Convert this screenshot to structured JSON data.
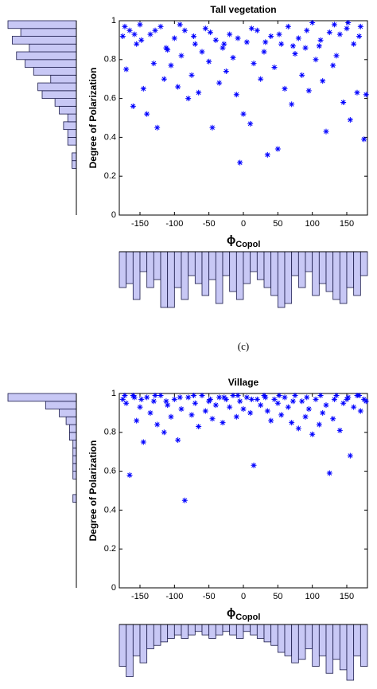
{
  "caption": "(c)",
  "chart_data": [
    {
      "type": "scatter",
      "title": "Tall vegetation",
      "y_label": "Degree of Polarization",
      "x_label": "ϕ",
      "x_label_sub": "Copol",
      "xlim": [
        -180,
        180
      ],
      "xticks": [
        -150,
        -100,
        -50,
        0,
        50,
        100,
        150
      ],
      "ylim": [
        0,
        1
      ],
      "yticks": [
        0,
        0.2,
        0.4,
        0.6,
        0.8,
        1
      ],
      "series": [
        {
          "color": "#0000ff",
          "x": [
            -175,
            -170,
            -165,
            -160,
            -155,
            -150,
            -145,
            -140,
            -135,
            -130,
            -125,
            -120,
            -115,
            -110,
            -105,
            -100,
            -95,
            -90,
            -85,
            -80,
            -75,
            -70,
            -65,
            -60,
            -55,
            -50,
            -45,
            -40,
            -35,
            -30,
            -25,
            -20,
            -15,
            -10,
            -5,
            0,
            5,
            10,
            15,
            20,
            25,
            30,
            35,
            40,
            45,
            50,
            55,
            60,
            65,
            70,
            75,
            80,
            85,
            90,
            95,
            100,
            105,
            110,
            115,
            120,
            125,
            130,
            135,
            140,
            145,
            150,
            155,
            160,
            165,
            170,
            175,
            -172,
            -158,
            -148,
            -128,
            -112,
            -92,
            -72,
            -48,
            -28,
            -8,
            12,
            32,
            52,
            72,
            92,
            112,
            132,
            152,
            168,
            178
          ],
          "y": [
            0.92,
            0.75,
            0.95,
            0.56,
            0.88,
            0.98,
            0.65,
            0.52,
            0.93,
            0.78,
            0.45,
            0.97,
            0.7,
            0.85,
            0.77,
            0.91,
            0.66,
            0.82,
            0.95,
            0.6,
            0.72,
            0.88,
            0.63,
            0.84,
            0.96,
            0.79,
            0.45,
            0.9,
            0.68,
            0.86,
            0.74,
            0.93,
            0.81,
            0.62,
            0.27,
            0.52,
            0.89,
            0.47,
            0.78,
            0.95,
            0.7,
            0.84,
            0.31,
            0.92,
            0.76,
            0.34,
            0.88,
            0.65,
            0.97,
            0.57,
            0.83,
            0.91,
            0.72,
            0.86,
            0.64,
            0.99,
            0.8,
            0.87,
            0.69,
            0.43,
            0.94,
            0.77,
            0.82,
            0.93,
            0.58,
            0.96,
            0.49,
            0.88,
            0.63,
            0.97,
            0.39,
            0.97,
            0.93,
            0.9,
            0.95,
            0.86,
            0.98,
            0.92,
            0.94,
            0.88,
            0.91,
            0.96,
            0.89,
            0.93,
            0.87,
            0.95,
            0.9,
            0.98,
            0.99,
            0.92,
            0.62
          ]
        }
      ],
      "hist_color": "#c8c8f5",
      "y_hist": {
        "bins": [
          0,
          0.04,
          0.08,
          0.12,
          0.16,
          0.2,
          0.24,
          0.28,
          0.32,
          0.36,
          0.4,
          0.44,
          0.48,
          0.52,
          0.56,
          0.6,
          0.64,
          0.68,
          0.72,
          0.76,
          0.8,
          0.84,
          0.88,
          0.92,
          0.96,
          1
        ],
        "values": [
          0,
          0,
          0,
          0,
          0,
          0,
          1,
          1,
          0,
          2,
          2,
          3,
          2,
          4,
          5,
          8,
          9,
          6,
          10,
          12,
          14,
          11,
          15,
          13,
          16
        ]
      },
      "x_hist": {
        "bins": [
          -180,
          -170,
          -160,
          -150,
          -140,
          -130,
          -120,
          -110,
          -100,
          -90,
          -80,
          -70,
          -60,
          -50,
          -40,
          -30,
          -20,
          -10,
          0,
          10,
          20,
          30,
          40,
          50,
          60,
          70,
          80,
          90,
          100,
          110,
          120,
          130,
          140,
          150,
          160,
          170,
          180
        ],
        "values": [
          9,
          8,
          12,
          5,
          9,
          7,
          14,
          14,
          9,
          12,
          6,
          8,
          11,
          7,
          13,
          6,
          10,
          12,
          8,
          5,
          7,
          9,
          11,
          14,
          13,
          6,
          9,
          5,
          11,
          8,
          10,
          12,
          13,
          9,
          11,
          6
        ]
      }
    },
    {
      "type": "scatter",
      "title": "Village",
      "y_label": "Degree of Polarization",
      "x_label": "ϕ",
      "x_label_sub": "Copol",
      "xlim": [
        -180,
        180
      ],
      "xticks": [
        -150,
        -100,
        -50,
        0,
        50,
        100,
        150
      ],
      "ylim": [
        0,
        1
      ],
      "yticks": [
        0,
        0.2,
        0.4,
        0.6,
        0.8,
        1
      ],
      "series": [
        {
          "color": "#0000ff",
          "x": [
            -175,
            -170,
            -165,
            -160,
            -155,
            -150,
            -145,
            -140,
            -135,
            -130,
            -125,
            -120,
            -115,
            -110,
            -105,
            -100,
            -95,
            -90,
            -85,
            -80,
            -75,
            -70,
            -65,
            -60,
            -55,
            -50,
            -45,
            -40,
            -35,
            -30,
            -25,
            -20,
            -15,
            -10,
            -5,
            0,
            5,
            10,
            15,
            20,
            25,
            30,
            35,
            40,
            45,
            50,
            55,
            60,
            65,
            70,
            75,
            80,
            85,
            90,
            95,
            100,
            105,
            110,
            115,
            120,
            125,
            130,
            135,
            140,
            145,
            150,
            155,
            160,
            165,
            170,
            175,
            -172,
            -158,
            -148,
            -128,
            -112,
            -92,
            -72,
            -48,
            -28,
            -8,
            12,
            32,
            52,
            72,
            92,
            112,
            132,
            152,
            168,
            178
          ],
          "y": [
            0.97,
            0.95,
            0.58,
            0.99,
            0.86,
            0.93,
            0.75,
            0.98,
            0.9,
            0.96,
            0.84,
            0.99,
            0.8,
            0.94,
            0.88,
            0.97,
            0.76,
            0.92,
            0.45,
            0.98,
            0.89,
            0.95,
            0.83,
            0.99,
            0.91,
            0.96,
            0.87,
            0.94,
            0.98,
            0.85,
            0.97,
            0.93,
            0.99,
            0.88,
            0.96,
            0.92,
            0.98,
            0.9,
            0.63,
            0.97,
            0.94,
            0.99,
            0.91,
            0.86,
            0.97,
            0.95,
            0.89,
            0.98,
            0.93,
            0.85,
            0.99,
            0.82,
            0.96,
            0.88,
            0.92,
            0.79,
            0.97,
            0.84,
            0.9,
            0.94,
            0.59,
            0.87,
            0.99,
            0.81,
            0.95,
            0.97,
            0.68,
            0.93,
            0.99,
            0.91,
            0.97,
            0.99,
            0.98,
            0.97,
            0.99,
            0.96,
            0.98,
            0.99,
            0.97,
            0.98,
            0.99,
            0.97,
            0.98,
            0.99,
            0.96,
            0.98,
            0.99,
            0.97,
            0.98,
            0.99,
            0.96
          ]
        }
      ],
      "hist_color": "#c8c8f5",
      "y_hist": {
        "bins": [
          0,
          0.04,
          0.08,
          0.12,
          0.16,
          0.2,
          0.24,
          0.28,
          0.32,
          0.36,
          0.4,
          0.44,
          0.48,
          0.52,
          0.56,
          0.6,
          0.64,
          0.68,
          0.72,
          0.76,
          0.8,
          0.84,
          0.88,
          0.92,
          0.96,
          1
        ],
        "values": [
          0,
          0,
          0,
          0,
          0,
          0,
          0,
          0,
          0,
          0,
          0,
          1,
          0,
          0,
          1,
          1,
          1,
          1,
          1,
          2,
          2,
          3,
          5,
          9,
          20
        ]
      },
      "x_hist": {
        "bins": [
          -180,
          -170,
          -160,
          -150,
          -140,
          -130,
          -120,
          -110,
          -100,
          -90,
          -80,
          -70,
          -60,
          -50,
          -40,
          -30,
          -20,
          -10,
          0,
          10,
          20,
          30,
          40,
          50,
          60,
          70,
          80,
          90,
          100,
          110,
          120,
          130,
          140,
          150,
          160,
          170,
          180
        ],
        "values": [
          12,
          15,
          9,
          11,
          7,
          6,
          5,
          4,
          3,
          4,
          3,
          2,
          3,
          4,
          3,
          2,
          3,
          4,
          2,
          3,
          4,
          5,
          6,
          8,
          9,
          11,
          10,
          7,
          12,
          9,
          14,
          10,
          13,
          16,
          9,
          12
        ]
      }
    }
  ]
}
